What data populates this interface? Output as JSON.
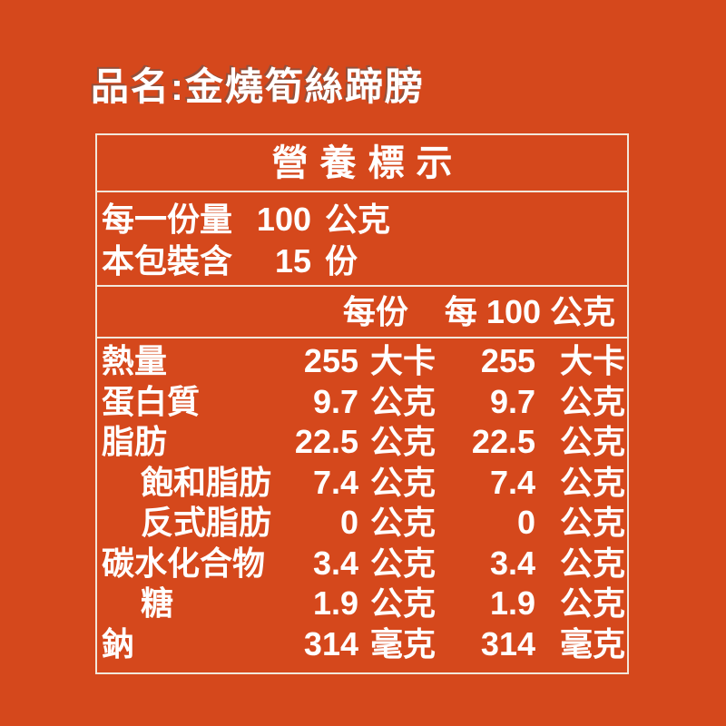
{
  "colors": {
    "background": "#D5481C",
    "table_border": "#F2E7DA",
    "text": "#FFFFFF"
  },
  "product": {
    "title": "品名:金燒筍絲蹄膀"
  },
  "nutrition_label": {
    "title": "營養標示",
    "serving_info": [
      {
        "label": "每一份量",
        "value": "100",
        "unit": "公克"
      },
      {
        "label": "本包裝含",
        "value": "15",
        "unit": "份"
      }
    ],
    "column_headers": {
      "per_serving": "每份",
      "per_100g": "每 100 公克"
    },
    "rows": [
      {
        "label": "熱量",
        "per_serving": "255",
        "per_serving_unit": "大卡",
        "per_100g": "255",
        "per_100g_unit": "大卡"
      },
      {
        "label": "蛋白質",
        "per_serving": "9.7",
        "per_serving_unit": "公克",
        "per_100g": "9.7",
        "per_100g_unit": "公克"
      },
      {
        "label": "脂肪",
        "per_serving": "22.5",
        "per_serving_unit": "公克",
        "per_100g": "22.5",
        "per_100g_unit": "公克"
      },
      {
        "label": "飽和脂肪",
        "per_serving": "7.4",
        "per_serving_unit": "公克",
        "per_100g": "7.4",
        "per_100g_unit": "公克"
      },
      {
        "label": "反式脂肪",
        "per_serving": "0",
        "per_serving_unit": "公克",
        "per_100g": "0",
        "per_100g_unit": "公克"
      },
      {
        "label": "碳水化合物",
        "per_serving": "3.4",
        "per_serving_unit": "公克",
        "per_100g": "3.4",
        "per_100g_unit": "公克"
      },
      {
        "label": "糖",
        "per_serving": "1.9",
        "per_serving_unit": "公克",
        "per_100g": "1.9",
        "per_100g_unit": "公克"
      },
      {
        "label": "鈉",
        "per_serving": "314",
        "per_serving_unit": "毫克",
        "per_100g": "314",
        "per_100g_unit": "毫克"
      }
    ]
  }
}
